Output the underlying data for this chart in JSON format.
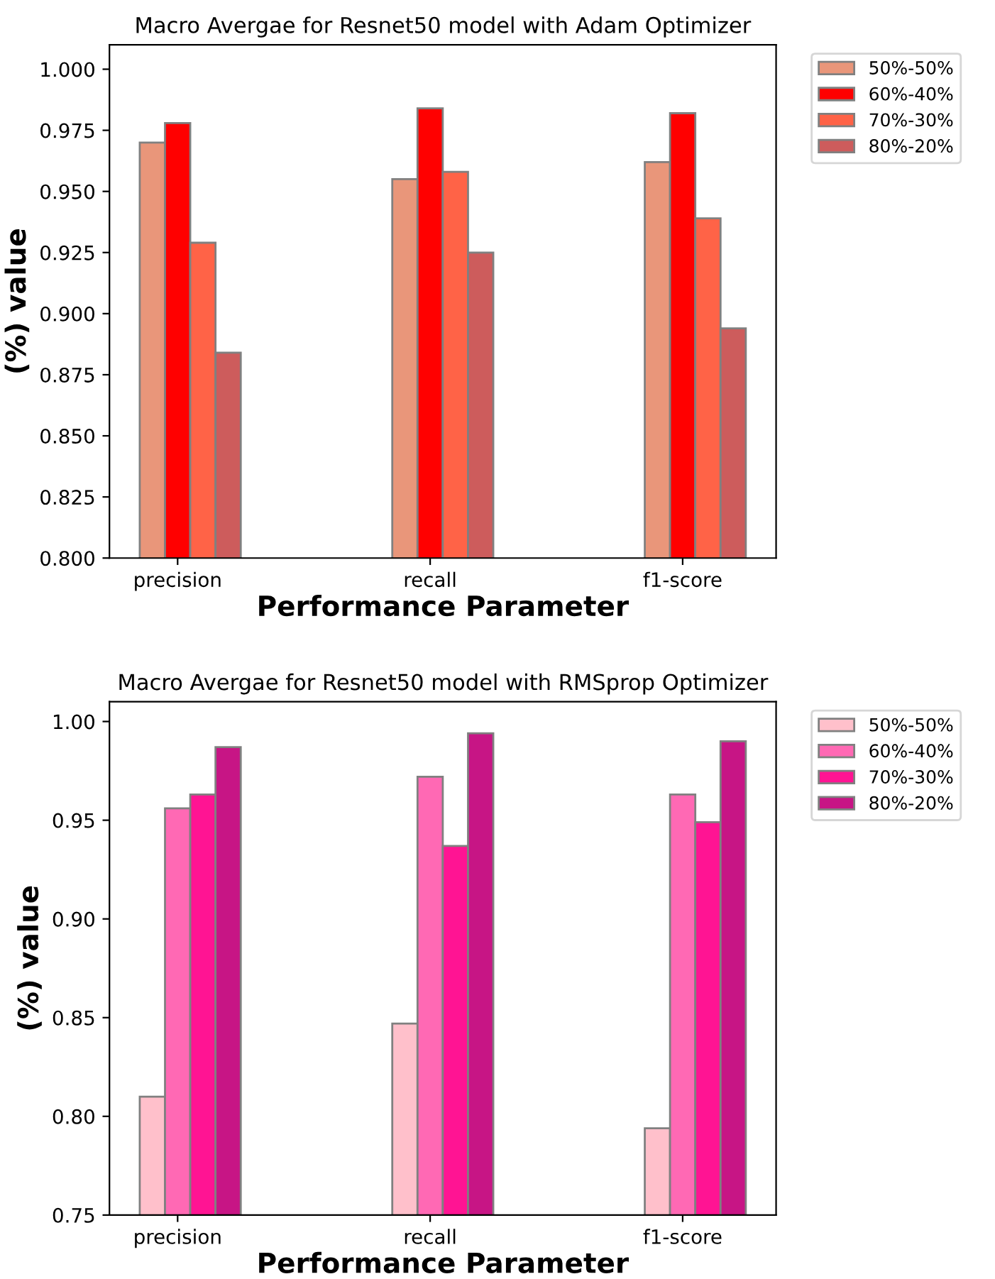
{
  "chart_data": [
    {
      "type": "bar",
      "title": "Macro Avergae for Resnet50 model with Adam Optimizer",
      "xlabel": "Performance Parameter",
      "ylabel": "(%) value",
      "categories": [
        "precision",
        "recall",
        "f1-score"
      ],
      "ylim": [
        0.8,
        1.01
      ],
      "yticks": [
        {
          "value": 0.8,
          "label": "0.800"
        },
        {
          "value": 0.825,
          "label": "0.825"
        },
        {
          "value": 0.85,
          "label": "0.850"
        },
        {
          "value": 0.875,
          "label": "0.875"
        },
        {
          "value": 0.9,
          "label": "0.900"
        },
        {
          "value": 0.925,
          "label": "0.925"
        },
        {
          "value": 0.95,
          "label": "0.950"
        },
        {
          "value": 0.975,
          "label": "0.975"
        },
        {
          "value": 1.0,
          "label": "1.000"
        }
      ],
      "legend": "top right",
      "series": [
        {
          "name": "50%-50%",
          "color": "#e9967a",
          "values": [
            0.97,
            0.955,
            0.962
          ]
        },
        {
          "name": "60%-40%",
          "color": "#ff0000",
          "values": [
            0.978,
            0.984,
            0.982
          ]
        },
        {
          "name": "70%-30%",
          "color": "#ff6347",
          "values": [
            0.929,
            0.958,
            0.939
          ]
        },
        {
          "name": "80%-20%",
          "color": "#cd5c5c",
          "values": [
            0.884,
            0.925,
            0.894
          ]
        }
      ]
    },
    {
      "type": "bar",
      "title": "Macro Avergae for Resnet50 model with RMSprop Optimizer",
      "xlabel": "Performance Parameter",
      "ylabel": "(%) value",
      "categories": [
        "precision",
        "recall",
        "f1-score"
      ],
      "ylim": [
        0.75,
        1.01
      ],
      "yticks": [
        {
          "value": 0.75,
          "label": "0.75"
        },
        {
          "value": 0.8,
          "label": "0.80"
        },
        {
          "value": 0.85,
          "label": "0.85"
        },
        {
          "value": 0.9,
          "label": "0.90"
        },
        {
          "value": 0.95,
          "label": "0.95"
        },
        {
          "value": 1.0,
          "label": "1.00"
        }
      ],
      "legend": "top right",
      "series": [
        {
          "name": "50%-50%",
          "color": "#ffc0cb",
          "values": [
            0.81,
            0.847,
            0.794
          ]
        },
        {
          "name": "60%-40%",
          "color": "#ff69b4",
          "values": [
            0.956,
            0.972,
            0.963
          ]
        },
        {
          "name": "70%-30%",
          "color": "#ff1493",
          "values": [
            0.963,
            0.937,
            0.949
          ]
        },
        {
          "name": "80%-20%",
          "color": "#c71585",
          "values": [
            0.987,
            0.994,
            0.99
          ]
        }
      ]
    }
  ]
}
